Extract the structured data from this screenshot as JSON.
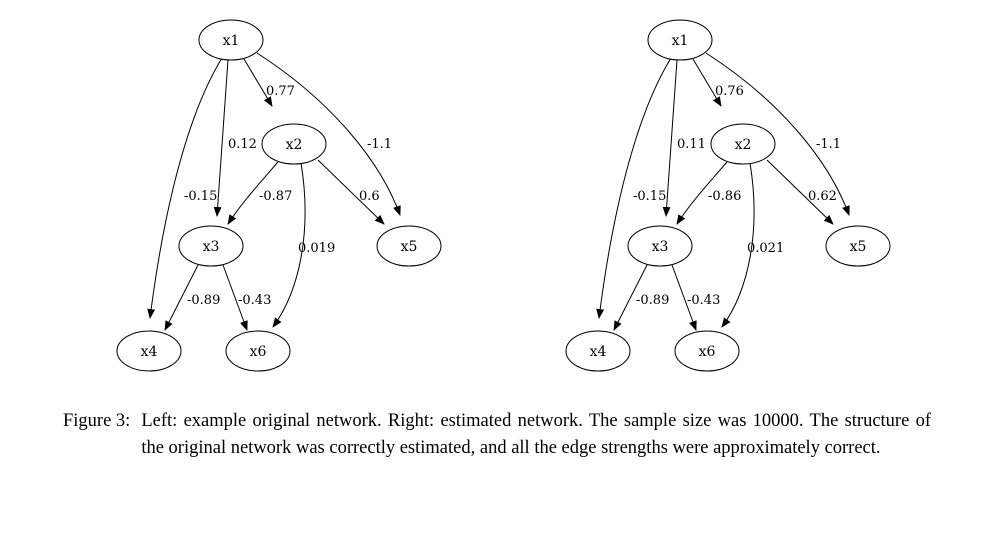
{
  "networks": [
    {
      "nodes": [
        {
          "id": "x1",
          "label": "x1"
        },
        {
          "id": "x2",
          "label": "x2"
        },
        {
          "id": "x3",
          "label": "x3"
        },
        {
          "id": "x4",
          "label": "x4"
        },
        {
          "id": "x5",
          "label": "x5"
        },
        {
          "id": "x6",
          "label": "x6"
        }
      ],
      "edges": [
        {
          "from": "x1",
          "to": "x2",
          "label": "0.77"
        },
        {
          "from": "x1",
          "to": "x3",
          "label": "0.12"
        },
        {
          "from": "x1",
          "to": "x4",
          "label": "-0.15"
        },
        {
          "from": "x1",
          "to": "x5",
          "label": "-1.1"
        },
        {
          "from": "x2",
          "to": "x3",
          "label": "-0.87"
        },
        {
          "from": "x2",
          "to": "x5",
          "label": "0.6"
        },
        {
          "from": "x2",
          "to": "x6",
          "label": "0.019"
        },
        {
          "from": "x3",
          "to": "x4",
          "label": "-0.89"
        },
        {
          "from": "x3",
          "to": "x6",
          "label": "-0.43"
        }
      ]
    },
    {
      "nodes": [
        {
          "id": "x1",
          "label": "x1"
        },
        {
          "id": "x2",
          "label": "x2"
        },
        {
          "id": "x3",
          "label": "x3"
        },
        {
          "id": "x4",
          "label": "x4"
        },
        {
          "id": "x5",
          "label": "x5"
        },
        {
          "id": "x6",
          "label": "x6"
        }
      ],
      "edges": [
        {
          "from": "x1",
          "to": "x2",
          "label": "0.76"
        },
        {
          "from": "x1",
          "to": "x3",
          "label": "0.11"
        },
        {
          "from": "x1",
          "to": "x4",
          "label": "-0.15"
        },
        {
          "from": "x1",
          "to": "x5",
          "label": "-1.1"
        },
        {
          "from": "x2",
          "to": "x3",
          "label": "-0.86"
        },
        {
          "from": "x2",
          "to": "x5",
          "label": "0.62"
        },
        {
          "from": "x2",
          "to": "x6",
          "label": "0.021"
        },
        {
          "from": "x3",
          "to": "x4",
          "label": "-0.89"
        },
        {
          "from": "x3",
          "to": "x6",
          "label": "-0.43"
        }
      ]
    }
  ],
  "caption": {
    "label": "Figure 3:",
    "text": "Left: example original network. Right: estimated network. The sample size was 10000. The structure of the original network was correctly estimated, and all the edge strengths were approximately correct."
  }
}
